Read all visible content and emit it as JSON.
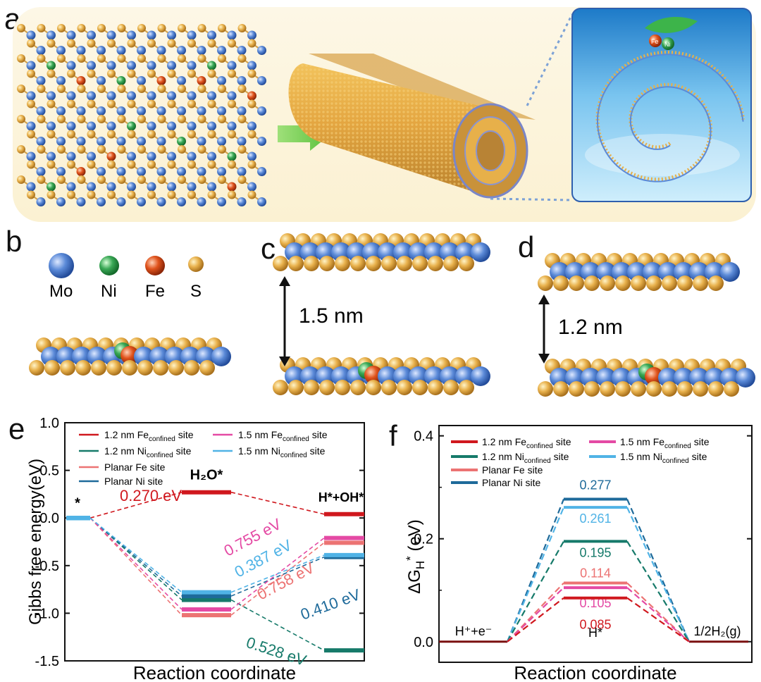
{
  "panel_labels": {
    "a": "a",
    "b": "b",
    "c": "c",
    "d": "d",
    "e": "e",
    "f": "f"
  },
  "panel_a": {
    "icon": "mos2-lattice-to-scroll-illustration",
    "tag_fe": "Fe",
    "tag_ni": "Ni"
  },
  "legend_b": [
    {
      "label": "Mo",
      "color": "#5b8ad8"
    },
    {
      "label": "Ni",
      "color": "#3aa856"
    },
    {
      "label": "Fe",
      "color": "#e0531c"
    },
    {
      "label": "S",
      "color": "#e7b04a"
    }
  ],
  "panel_c": {
    "distance": "1.5 nm"
  },
  "panel_d": {
    "distance": "1.2 nm"
  },
  "chart_data": [
    {
      "panel": "e",
      "type": "line",
      "ylabel": "Gibbs free energy(eV)",
      "xlabel": "Reaction coordinate",
      "ylim": [
        -1.5,
        1.0
      ],
      "yticks": [
        "1.0",
        "0.5",
        "0.0",
        "-0.5",
        "-1.0",
        "-1.5"
      ],
      "stage_labels": [
        "*",
        "H₂O*",
        "H*+OH*"
      ],
      "legend_placement": "top",
      "legend": [
        {
          "label": "1.2 nm Fe",
          "sub": "confined",
          "suffix": " site",
          "color": "#d0181e"
        },
        {
          "label": "1.2 nm Ni",
          "sub": "confined",
          "suffix": " site",
          "color": "#167a6a"
        },
        {
          "label": "Planar Fe site",
          "sub": "",
          "suffix": "",
          "color": "#ec7373"
        },
        {
          "label": "Planar Ni site",
          "sub": "",
          "suffix": "",
          "color": "#1e6a9a"
        },
        {
          "label": "1.5 nm Fe",
          "sub": "confined",
          "suffix": " site",
          "color": "#e44aa4"
        },
        {
          "label": "1.5 nm Ni",
          "sub": "confined",
          "suffix": " site",
          "color": "#50b3e6"
        }
      ],
      "series": [
        {
          "name": "1.2 nm Fe_confined site",
          "color": "#d0181e",
          "values": [
            0.0,
            0.27,
            0.04
          ]
        },
        {
          "name": "1.2 nm Ni_confined site",
          "color": "#167a6a",
          "values": [
            0.0,
            -0.86,
            -1.39
          ]
        },
        {
          "name": "Planar Fe site",
          "color": "#ec7373",
          "values": [
            0.0,
            -1.02,
            -0.26
          ]
        },
        {
          "name": "Planar Ni site",
          "color": "#1e6a9a",
          "values": [
            0.0,
            -0.82,
            -0.41
          ]
        },
        {
          "name": "1.5 nm Fe_confined site",
          "color": "#e44aa4",
          "values": [
            0.0,
            -0.96,
            -0.21
          ]
        },
        {
          "name": "1.5 nm Ni_confined site",
          "color": "#50b3e6",
          "values": [
            0.0,
            -0.78,
            -0.39
          ]
        }
      ],
      "annotations": [
        {
          "text": "0.270 eV",
          "color": "#d0181e"
        },
        {
          "text": "0.755 eV",
          "color": "#e44aa4"
        },
        {
          "text": "0.387 eV",
          "color": "#50b3e6"
        },
        {
          "text": "0.758 eV",
          "color": "#ec7373"
        },
        {
          "text": "0.410 eV",
          "color": "#1e6a9a"
        },
        {
          "text": "0.528 eV",
          "color": "#167a6a"
        }
      ]
    },
    {
      "panel": "f",
      "type": "line",
      "ylabel": "ΔGH* (eV)",
      "xlabel": "Reaction coordinate",
      "ylim": [
        -0.04,
        0.42
      ],
      "yticks": [
        "0.4",
        "0.2",
        "0.0"
      ],
      "stage_labels": [
        "H⁺+e⁻",
        "H*",
        "1/2H₂(g)"
      ],
      "legend_placement": "top",
      "legend": [
        {
          "label": "1.2 nm Fe",
          "sub": "confined",
          "suffix": " site",
          "color": "#d0181e"
        },
        {
          "label": "1.2 nm Ni",
          "sub": "confined",
          "suffix": " site",
          "color": "#167a6a"
        },
        {
          "label": "Planar Fe site",
          "sub": "",
          "suffix": "",
          "color": "#ec7373"
        },
        {
          "label": "Planar Ni site",
          "sub": "",
          "suffix": "",
          "color": "#1e6a9a"
        },
        {
          "label": "1.5 nm Fe",
          "sub": "confined",
          "suffix": " site",
          "color": "#e44aa4"
        },
        {
          "label": "1.5 nm Ni",
          "sub": "confined",
          "suffix": " site",
          "color": "#50b3e6"
        }
      ],
      "series": [
        {
          "name": "Planar Ni site",
          "color": "#1e6a9a",
          "values": [
            0.0,
            0.277,
            0.0
          ],
          "label": "0.277"
        },
        {
          "name": "1.5 nm Ni_confined site",
          "color": "#50b3e6",
          "values": [
            0.0,
            0.261,
            0.0
          ],
          "label": "0.261"
        },
        {
          "name": "1.2 nm Ni_confined site",
          "color": "#167a6a",
          "values": [
            0.0,
            0.195,
            0.0
          ],
          "label": "0.195"
        },
        {
          "name": "Planar Fe site",
          "color": "#ec7373",
          "values": [
            0.0,
            0.114,
            0.0
          ],
          "label": "0.114"
        },
        {
          "name": "1.5 nm Fe_confined site",
          "color": "#e44aa4",
          "values": [
            0.0,
            0.105,
            0.0
          ],
          "label": "0.105"
        },
        {
          "name": "1.2 nm Fe_confined site",
          "color": "#d0181e",
          "values": [
            0.0,
            0.085,
            0.0
          ],
          "label": "0.085"
        }
      ]
    }
  ]
}
